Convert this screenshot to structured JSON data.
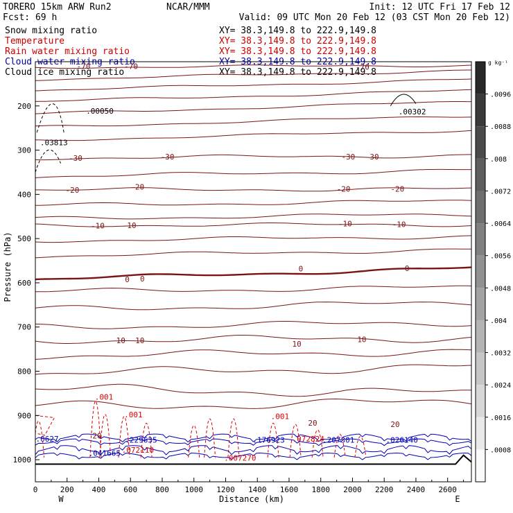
{
  "header": {
    "model": "TORERO  15km ARW   Run2",
    "center": "NCAR/MMM",
    "init": "Init: 12 UTC Fri 17 Feb 12",
    "fcst": "Fcst:   69 h",
    "valid": "Valid: 09 UTC Mon 20 Feb 12 (03 CST Mon 20 Feb 12)"
  },
  "fields": [
    {
      "name": "Snow mixing ratio",
      "xy": "XY=  38.3,149.8 to 222.9,149.8",
      "color": "#000000"
    },
    {
      "name": "Temperature",
      "xy": "XY=  38.3,149.8 to 222.9,149.8",
      "color": "#cc0000"
    },
    {
      "name": "Rain water mixing ratio",
      "xy": "XY=  38.3,149.8 to 222.9,149.8",
      "color": "#cc0000"
    },
    {
      "name": "Cloud water mixing ratio",
      "xy": "XY=  38.3,149.8 to 222.9,149.8",
      "color": "#0000aa"
    },
    {
      "name": "Cloud ice mixing ratio",
      "xy": "XY=  38.3,149.8 to 222.9,149.8",
      "color": "#000000"
    }
  ],
  "colors": {
    "temperature": "#7a1414",
    "freezing": "#7a1414",
    "rain": "#dd0000",
    "cloud_water": "#0000bb",
    "ice": "#000000",
    "terrain": "#000000"
  },
  "chart_data": {
    "type": "cross-section",
    "xlabel": "Distance (km)",
    "ylabel": "Pressure (hPa)",
    "xlim": [
      0,
      2750
    ],
    "ylim": [
      1050,
      100
    ],
    "x_ticks": [
      "0",
      "200",
      "400",
      "600",
      "800",
      "1000",
      "1200",
      "1400",
      "1600",
      "1800",
      "2000",
      "2200",
      "2400",
      "2600"
    ],
    "y_ticks": [
      "200",
      "300",
      "400",
      "500",
      "600",
      "700",
      "800",
      "900",
      "1000"
    ],
    "endpoints": {
      "left": "W",
      "right": "E"
    },
    "colorbar": {
      "unit": "g kg⁻¹",
      "ticks": [
        ".0096",
        ".0088",
        ".008",
        ".0072",
        ".0064",
        ".0056",
        ".0048",
        ".004",
        ".0032",
        ".0024",
        ".0016",
        ".0008"
      ]
    },
    "temperature_labels": [
      {
        "text": "-70",
        "x": 260,
        "p": 110
      },
      {
        "text": "-70",
        "x": 560,
        "p": 110
      },
      {
        "text": "-70",
        "x": 2020,
        "p": 112
      },
      {
        "text": "-30",
        "x": 210,
        "p": 318
      },
      {
        "text": "-30",
        "x": 790,
        "p": 315
      },
      {
        "text": "-30",
        "x": 1930,
        "p": 315
      },
      {
        "text": "-30",
        "x": 2080,
        "p": 315
      },
      {
        "text": "-20",
        "x": 190,
        "p": 390
      },
      {
        "text": "-20",
        "x": 600,
        "p": 383
      },
      {
        "text": "-20",
        "x": 1900,
        "p": 388
      },
      {
        "text": "-20",
        "x": 2240,
        "p": 388
      },
      {
        "text": "-10",
        "x": 350,
        "p": 471
      },
      {
        "text": "-10",
        "x": 550,
        "p": 470
      },
      {
        "text": "-10",
        "x": 1910,
        "p": 466
      },
      {
        "text": "-10",
        "x": 2250,
        "p": 468
      },
      {
        "text": "0",
        "x": 565,
        "p": 592
      },
      {
        "text": "0",
        "x": 660,
        "p": 591
      },
      {
        "text": "0",
        "x": 1660,
        "p": 568
      },
      {
        "text": "0",
        "x": 2330,
        "p": 567
      },
      {
        "text": "10",
        "x": 510,
        "p": 730
      },
      {
        "text": "10",
        "x": 630,
        "p": 730
      },
      {
        "text": "10",
        "x": 1620,
        "p": 738
      },
      {
        "text": "10",
        "x": 2030,
        "p": 728
      },
      {
        "text": "20",
        "x": 360,
        "p": 946
      },
      {
        "text": "20",
        "x": 1720,
        "p": 917
      },
      {
        "text": "20",
        "x": 2240,
        "p": 920
      }
    ],
    "maxima_labels": [
      {
        "text": ".00050",
        "x": 320,
        "p": 211,
        "color": "ice"
      },
      {
        "text": ".03813",
        "x": 30,
        "p": 283,
        "color": "ice"
      },
      {
        "text": ".00302",
        "x": 2290,
        "p": 213,
        "color": "ice"
      },
      {
        "text": ".001",
        "x": 375,
        "p": 858,
        "color": "rain"
      },
      {
        "text": ".001",
        "x": 560,
        "p": 898,
        "color": "rain"
      },
      {
        "text": ".001",
        "x": 1485,
        "p": 902,
        "color": "rain"
      },
      {
        "text": ".072110",
        "x": 545,
        "p": 978,
        "color": "rain"
      },
      {
        "text": ".007270",
        "x": 1190,
        "p": 996,
        "color": "rain"
      },
      {
        "text": ".072824",
        "x": 1620,
        "p": 953,
        "color": "rain"
      },
      {
        "text": ".0627",
        "x": 2,
        "p": 953,
        "color": "cloud_water"
      },
      {
        "text": ".041665",
        "x": 335,
        "p": 985,
        "color": "cloud_water"
      },
      {
        "text": ".229635",
        "x": 565,
        "p": 955,
        "color": "cloud_water"
      },
      {
        "text": ".176923",
        "x": 1370,
        "p": 955,
        "color": "cloud_water"
      },
      {
        "text": ".207301",
        "x": 1810,
        "p": 955,
        "color": "cloud_water"
      },
      {
        "text": ".026140",
        "x": 2210,
        "p": 955,
        "color": "cloud_water"
      }
    ]
  }
}
